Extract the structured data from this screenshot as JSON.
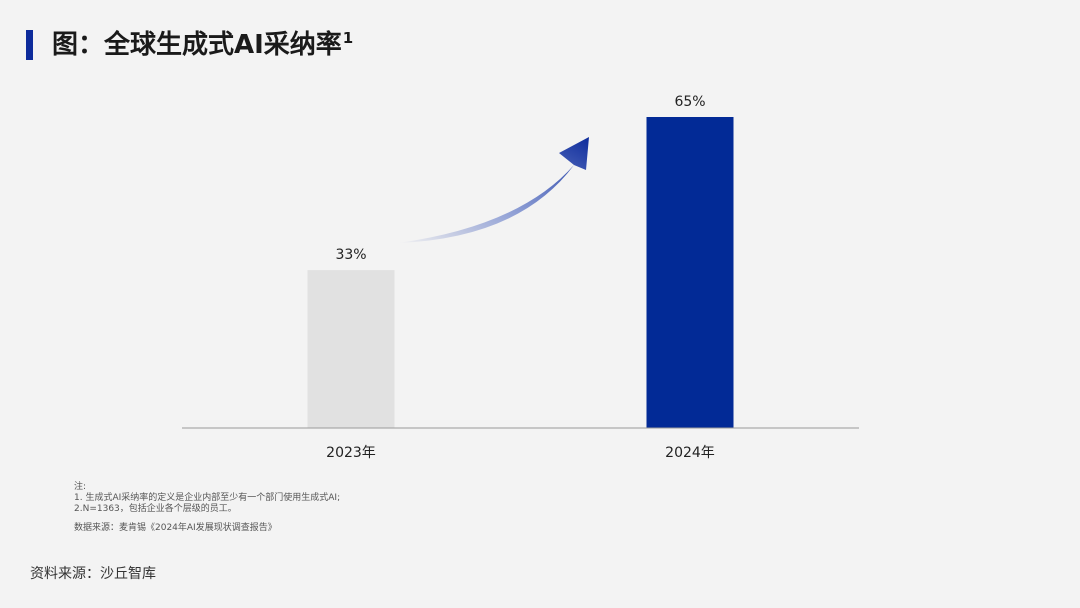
{
  "header": {
    "title": "图：全球生成式AI采纳率",
    "superscript": "1"
  },
  "chart_data": {
    "type": "bar",
    "categories": [
      "2023年",
      "2024年"
    ],
    "values": [
      33,
      65
    ],
    "value_labels": [
      "33%",
      "65%"
    ],
    "unit": "%",
    "ylim": [
      0,
      70
    ],
    "colors": [
      "#e1e1e1",
      "#022a96"
    ],
    "grid": false,
    "legend": "none",
    "annotation": "upward-arrow-between-bars"
  },
  "notes": {
    "heading": "注:",
    "line1": "1. 生成式AI采纳率的定义是企业内部至少有一个部门使用生成式AI;",
    "line2": "2.N=1363，包括企业各个层级的员工。",
    "data_source": "数据来源：麦肯锡《2024年AI发展现状调查报告》"
  },
  "footer": {
    "source": "资料来源：沙丘智库"
  }
}
